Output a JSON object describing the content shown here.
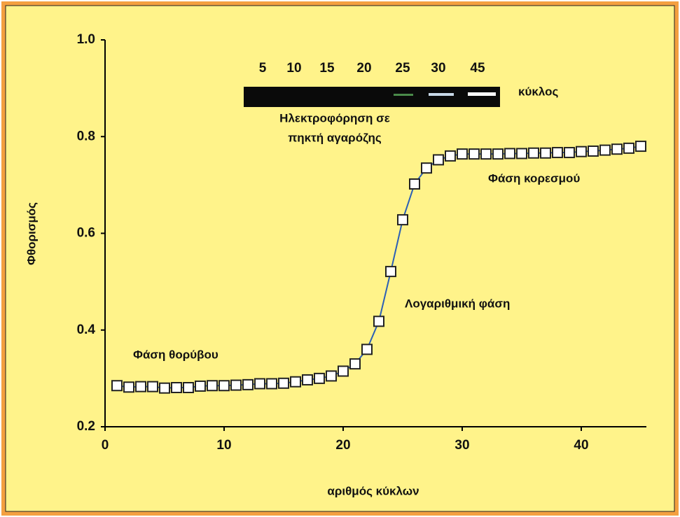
{
  "chart_data": {
    "type": "line",
    "x_label": "αριθμός κύκλων",
    "y_label": "Φθορισμός",
    "x": [
      1,
      2,
      3,
      4,
      5,
      6,
      7,
      8,
      9,
      10,
      11,
      12,
      13,
      14,
      15,
      16,
      17,
      18,
      19,
      20,
      21,
      22,
      23,
      24,
      25,
      26,
      27,
      28,
      29,
      30,
      31,
      32,
      33,
      34,
      35,
      36,
      37,
      38,
      39,
      40,
      41,
      42,
      43,
      44,
      45
    ],
    "series": [
      {
        "color": "#2b5fb5",
        "values": [
          0.285,
          0.282,
          0.283,
          0.283,
          0.28,
          0.281,
          0.281,
          0.284,
          0.285,
          0.285,
          0.286,
          0.287,
          0.289,
          0.289,
          0.29,
          0.293,
          0.297,
          0.3,
          0.305,
          0.315,
          0.33,
          0.36,
          0.418,
          0.521,
          0.628,
          0.702,
          0.735,
          0.752,
          0.76,
          0.764,
          0.764,
          0.764,
          0.764,
          0.765,
          0.765,
          0.766,
          0.766,
          0.767,
          0.767,
          0.769,
          0.77,
          0.772,
          0.774,
          0.776,
          0.78
        ]
      }
    ],
    "xlim": [
      0,
      45
    ],
    "ylim": [
      0.2,
      1.0
    ],
    "xticks": [
      0,
      10,
      20,
      30,
      40
    ],
    "yticks": [
      {
        "value": 0.2,
        "label": "0.2"
      },
      0.4,
      0.6,
      0.8,
      {
        "value": 1.0,
        "label": "1.0"
      }
    ],
    "gel": {
      "lanes": [
        "5",
        "10",
        "15",
        "20",
        "25",
        "30",
        "45"
      ],
      "label": "κύκλος",
      "caption": [
        "Ηλεκτροφόρηση σε",
        "πηκτή αγαρόζης"
      ]
    },
    "annotations": {
      "noise": "Φάση θορύβου",
      "log": "Λογαριθμική φάση",
      "plateau": "Φάση κορεσμού"
    }
  }
}
